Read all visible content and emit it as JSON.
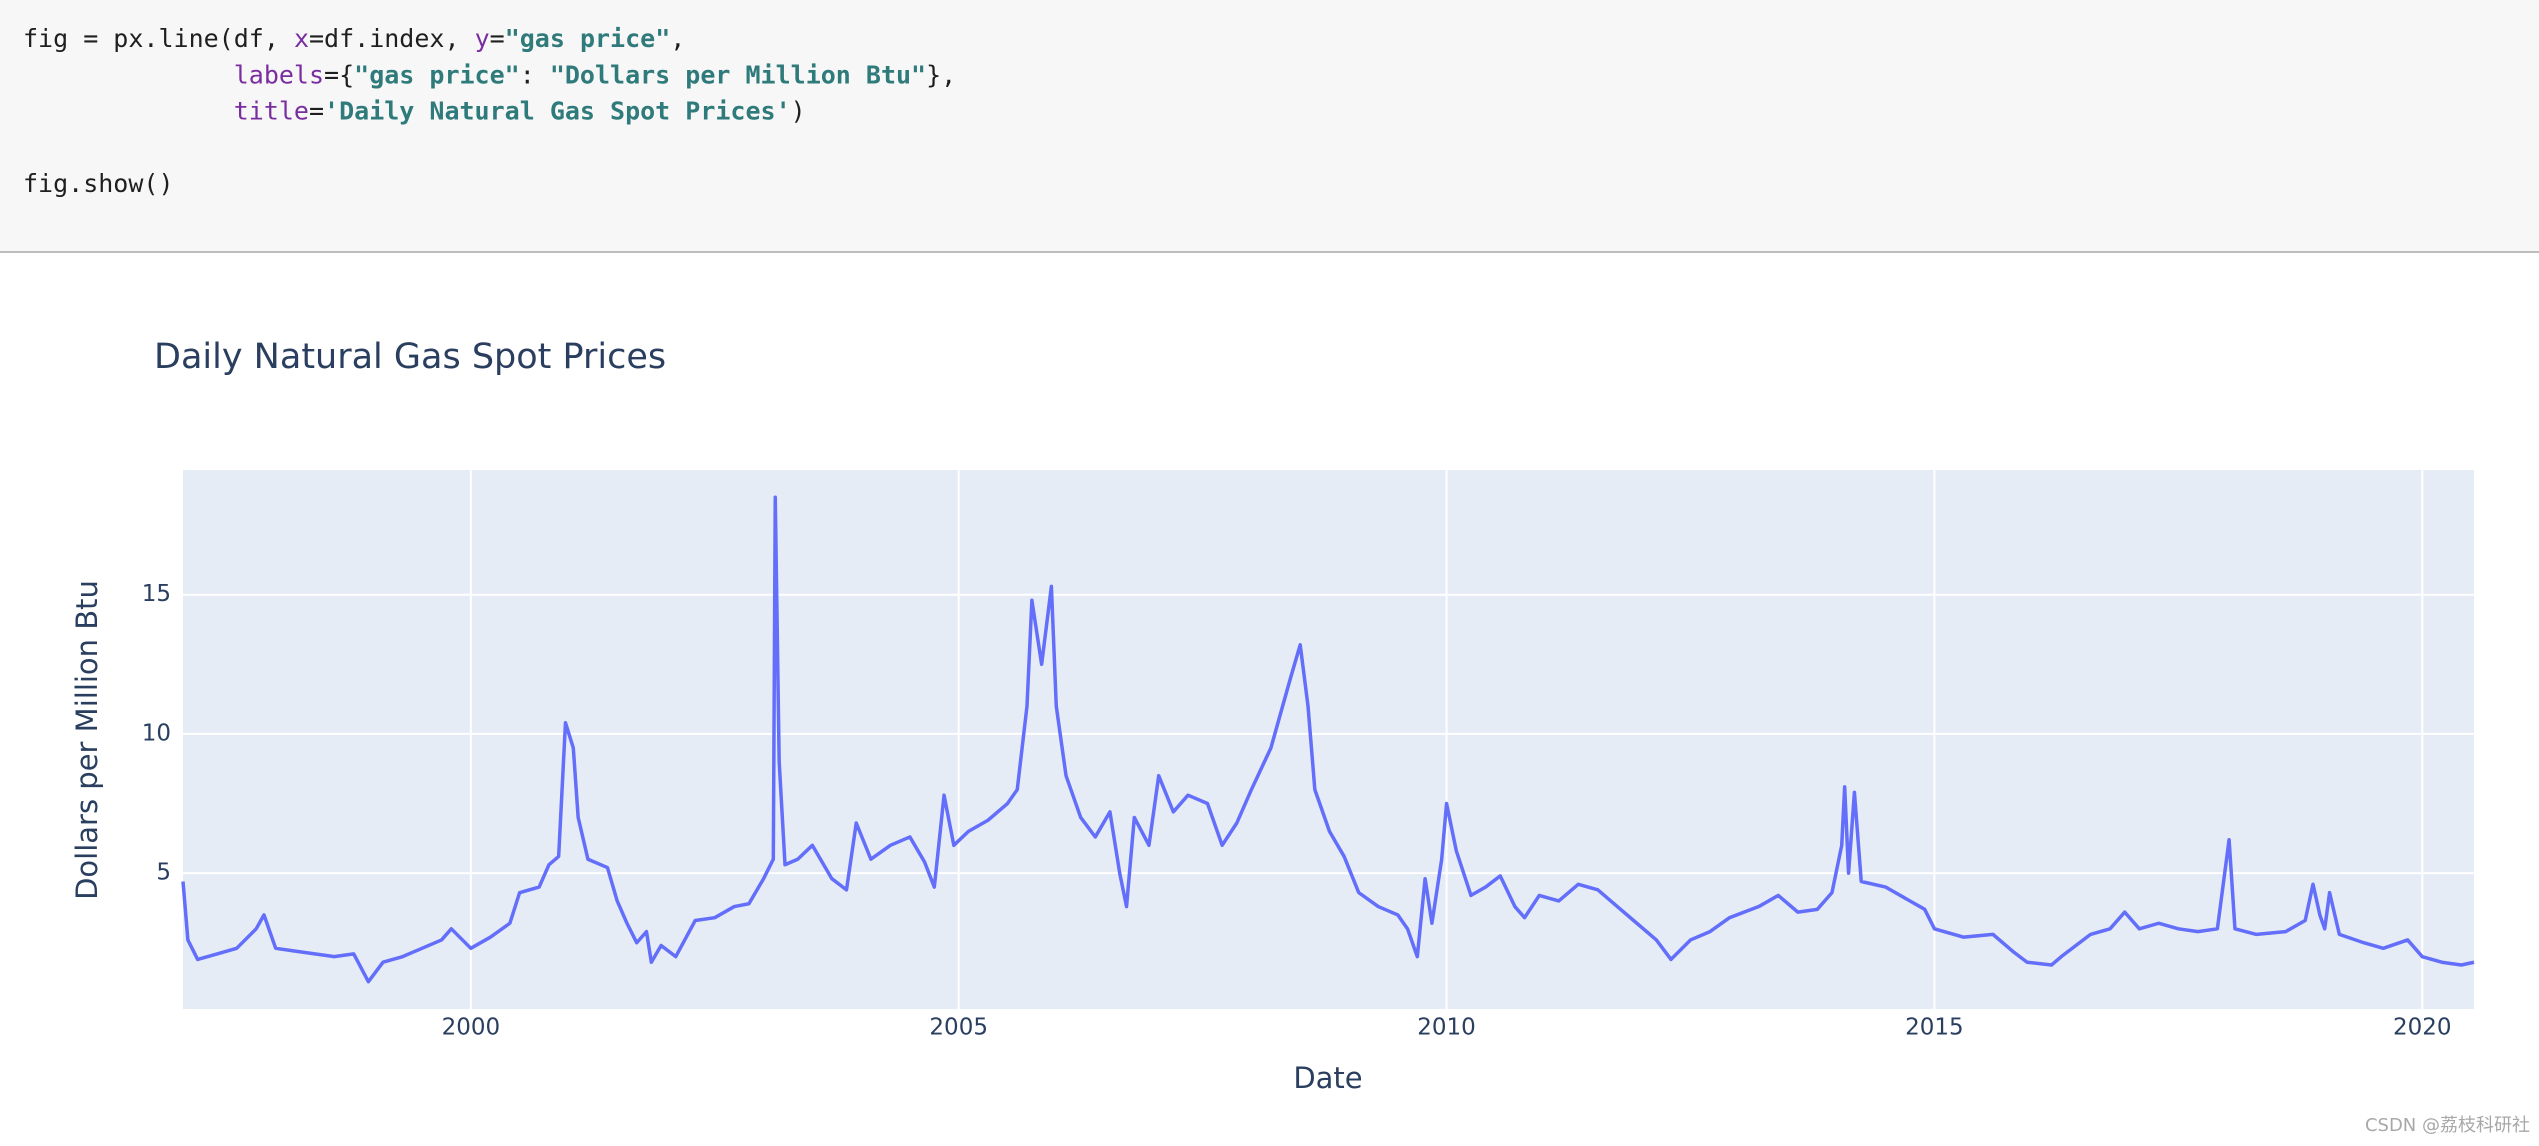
{
  "code": {
    "lines": [
      [
        {
          "text": "fig = px.line(df, ",
          "color": "#1f1f1f"
        },
        {
          "text": "x",
          "color": "#7a2da0"
        },
        {
          "text": "=df.index, ",
          "color": "#1f1f1f"
        },
        {
          "text": "y",
          "color": "#7a2da0"
        },
        {
          "text": "=",
          "color": "#1f1f1f"
        },
        {
          "text": "\"gas price\"",
          "color": "#2f7a7a"
        },
        {
          "text": ",",
          "color": "#1f1f1f"
        }
      ],
      [
        {
          "text": "              labels",
          "color": "#7a2da0"
        },
        {
          "text": "={",
          "color": "#1f1f1f"
        },
        {
          "text": "\"gas price\"",
          "color": "#2f7a7a"
        },
        {
          "text": ": ",
          "color": "#1f1f1f"
        },
        {
          "text": "\"Dollars per Million Btu\"",
          "color": "#2f7a7a"
        },
        {
          "text": "},",
          "color": "#1f1f1f"
        }
      ],
      [
        {
          "text": "              title",
          "color": "#7a2da0"
        },
        {
          "text": "=",
          "color": "#1f1f1f"
        },
        {
          "text": "'Daily Natural Gas Spot Prices'",
          "color": "#2f7a7a"
        },
        {
          "text": ")",
          "color": "#1f1f1f"
        }
      ],
      [],
      [
        {
          "text": "fig.show()",
          "color": "#1f1f1f"
        }
      ]
    ]
  },
  "chart_data": {
    "type": "line",
    "title": "Daily Natural Gas Spot Prices",
    "xlabel": "Date",
    "ylabel": "Dollars per Million Btu",
    "color": "#636efa",
    "grid": true,
    "xlim": [
      1997.05,
      2020.53
    ],
    "xticks": [
      2000,
      2005,
      2010,
      2015,
      2020
    ],
    "ylim": [
      0.12,
      19.48
    ],
    "yticks": [
      5,
      10,
      15
    ],
    "x": [
      1997.05,
      1997.1,
      1997.2,
      1997.4,
      1997.6,
      1997.8,
      1997.88,
      1998.0,
      1998.2,
      1998.4,
      1998.6,
      1998.8,
      1998.95,
      1999.1,
      1999.3,
      1999.5,
      1999.7,
      1999.8,
      2000.0,
      2000.2,
      2000.4,
      2000.5,
      2000.7,
      2000.8,
      2000.9,
      2000.97,
      2001.05,
      2001.1,
      2001.2,
      2001.4,
      2001.5,
      2001.6,
      2001.7,
      2001.8,
      2001.85,
      2001.95,
      2002.1,
      2002.3,
      2002.5,
      2002.7,
      2002.85,
      2003.0,
      2003.1,
      2003.12,
      2003.16,
      2003.22,
      2003.35,
      2003.5,
      2003.7,
      2003.85,
      2003.95,
      2004.1,
      2004.3,
      2004.5,
      2004.65,
      2004.75,
      2004.85,
      2004.95,
      2005.1,
      2005.3,
      2005.5,
      2005.6,
      2005.7,
      2005.75,
      2005.85,
      2005.95,
      2006.0,
      2006.1,
      2006.25,
      2006.4,
      2006.55,
      2006.65,
      2006.72,
      2006.8,
      2006.95,
      2007.05,
      2007.2,
      2007.35,
      2007.55,
      2007.7,
      2007.85,
      2008.0,
      2008.2,
      2008.4,
      2008.5,
      2008.58,
      2008.65,
      2008.8,
      2008.95,
      2009.1,
      2009.3,
      2009.5,
      2009.6,
      2009.7,
      2009.78,
      2009.85,
      2009.95,
      2010.0,
      2010.1,
      2010.25,
      2010.4,
      2010.55,
      2010.7,
      2010.8,
      2010.95,
      2011.15,
      2011.35,
      2011.55,
      2011.75,
      2011.95,
      2012.15,
      2012.3,
      2012.5,
      2012.7,
      2012.9,
      2013.2,
      2013.4,
      2013.6,
      2013.8,
      2013.95,
      2014.05,
      2014.08,
      2014.12,
      2014.18,
      2014.25,
      2014.5,
      2014.75,
      2014.9,
      2015.0,
      2015.3,
      2015.6,
      2015.8,
      2015.95,
      2016.2,
      2016.3,
      2016.6,
      2016.8,
      2016.95,
      2017.1,
      2017.3,
      2017.5,
      2017.7,
      2017.9,
      2018.02,
      2018.08,
      2018.3,
      2018.6,
      2018.8,
      2018.88,
      2018.95,
      2019.0,
      2019.05,
      2019.15,
      2019.4,
      2019.6,
      2019.85,
      2020.0,
      2020.2,
      2020.4,
      2020.53
    ],
    "values": [
      4.7,
      2.6,
      1.9,
      2.1,
      2.3,
      3.0,
      3.5,
      2.3,
      2.2,
      2.1,
      2.0,
      2.1,
      1.1,
      1.8,
      2.0,
      2.3,
      2.6,
      3.0,
      2.3,
      2.7,
      3.2,
      4.3,
      4.5,
      5.3,
      5.6,
      10.4,
      9.5,
      7.0,
      5.5,
      5.2,
      4.0,
      3.2,
      2.5,
      2.9,
      1.8,
      2.4,
      2.0,
      3.3,
      3.4,
      3.8,
      3.9,
      4.8,
      5.5,
      18.5,
      9.0,
      5.3,
      5.5,
      6.0,
      4.8,
      4.4,
      6.8,
      5.5,
      6.0,
      6.3,
      5.4,
      4.5,
      7.8,
      6.0,
      6.5,
      6.9,
      7.5,
      8.0,
      11.0,
      14.8,
      12.5,
      15.3,
      11.0,
      8.5,
      7.0,
      6.3,
      7.2,
      5.0,
      3.8,
      7.0,
      6.0,
      8.5,
      7.2,
      7.8,
      7.5,
      6.0,
      6.8,
      8.0,
      9.5,
      12.0,
      13.2,
      11.0,
      8.0,
      6.5,
      5.6,
      4.3,
      3.8,
      3.5,
      3.0,
      2.0,
      4.8,
      3.2,
      5.5,
      7.5,
      5.8,
      4.2,
      4.5,
      4.9,
      3.8,
      3.4,
      4.2,
      4.0,
      4.6,
      4.4,
      3.8,
      3.2,
      2.6,
      1.9,
      2.6,
      2.9,
      3.4,
      3.8,
      4.2,
      3.6,
      3.7,
      4.3,
      6.0,
      8.1,
      5.0,
      7.9,
      4.7,
      4.5,
      4.0,
      3.7,
      3.0,
      2.7,
      2.8,
      2.2,
      1.8,
      1.7,
      2.0,
      2.8,
      3.0,
      3.6,
      3.0,
      3.2,
      3.0,
      2.9,
      3.0,
      6.2,
      3.0,
      2.8,
      2.9,
      3.3,
      4.6,
      3.5,
      3.0,
      4.3,
      2.8,
      2.5,
      2.3,
      2.6,
      2.0,
      1.8,
      1.7,
      1.8
    ]
  },
  "watermark": "CSDN @荔枝科研社"
}
